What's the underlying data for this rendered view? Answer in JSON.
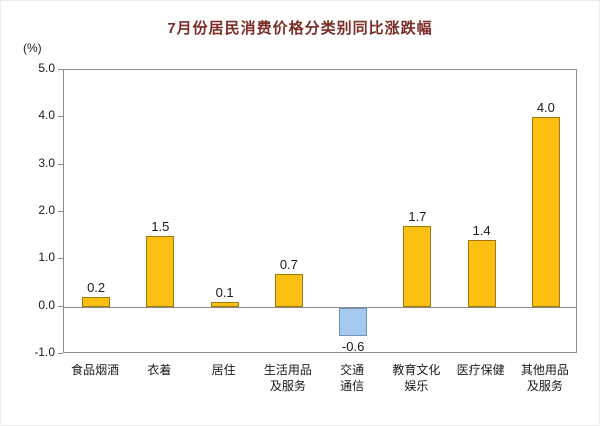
{
  "title": "7月份居民消费价格分类别同比涨跌幅",
  "unit_label": "(%)",
  "y_axis": {
    "tick_labels": [
      "5.0",
      "4.0",
      "3.0",
      "2.0",
      "1.0",
      "0.0",
      "-1.0"
    ],
    "max": 5.0,
    "min": -1.0,
    "step": 1.0
  },
  "colors": {
    "title_text": "#7B2D26",
    "axis": "#8C8C8C",
    "text": "#1A1A1A",
    "positive_fill": "#FCC013",
    "positive_border": "#A07812",
    "negative_fill": "#A5C9EF",
    "negative_border": "#7192BE"
  },
  "chart_data": {
    "type": "bar",
    "title": "7月份居民消费价格分类别同比涨跌幅",
    "categories": [
      "食品烟酒",
      "衣着",
      "居住",
      "生活用品及服务",
      "交通通信",
      "教育文化娱乐",
      "医疗保健",
      "其他用品及服务"
    ],
    "category_label_lines": [
      [
        "食品烟酒"
      ],
      [
        "衣着"
      ],
      [
        "居住"
      ],
      [
        "生活用品",
        "及服务"
      ],
      [
        "交通",
        "通信"
      ],
      [
        "教育文化",
        "娱乐"
      ],
      [
        "医疗保健"
      ],
      [
        "其他用品",
        "及服务"
      ]
    ],
    "values": [
      0.2,
      1.5,
      0.1,
      0.7,
      -0.6,
      1.7,
      1.4,
      4.0
    ],
    "value_labels": [
      "0.2",
      "1.5",
      "0.1",
      "0.7",
      "-0.6",
      "1.7",
      "1.4",
      "4.0"
    ],
    "xlabel": "",
    "ylabel": "(%)",
    "ylim": [
      -1.0,
      5.0
    ],
    "grid": false,
    "legend": false,
    "bar_color_rule": "positive values gold, negative values light blue"
  }
}
